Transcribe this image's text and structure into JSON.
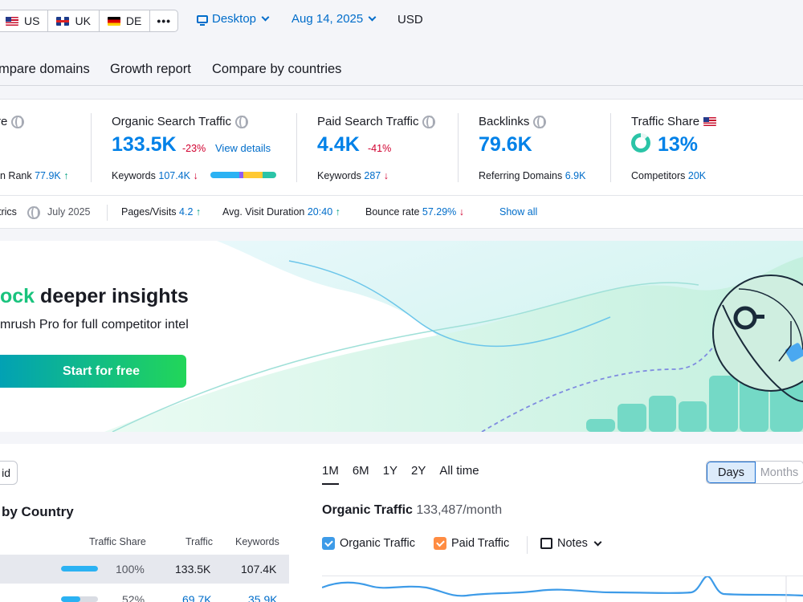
{
  "topbar": {
    "databases": [
      {
        "code": "US",
        "flag": "flag-us"
      },
      {
        "code": "UK",
        "flag": "flag-uk"
      },
      {
        "code": "DE",
        "flag": "flag-de"
      }
    ],
    "more_label": "•••",
    "device": "Desktop",
    "date": "Aug 14, 2025",
    "currency": "USD"
  },
  "nav": {
    "tabs": [
      "mpare domains",
      "Growth report",
      "Compare by countries"
    ]
  },
  "metrics": {
    "authority": {
      "title": "re",
      "sub_label": "n Rank",
      "sub_value": "77.9K",
      "sub_trend": "↑"
    },
    "organic": {
      "title": "Organic Search Traffic",
      "value": "133.5K",
      "delta": "-23%",
      "link": "View details",
      "sub_label": "Keywords",
      "sub_value": "107.4K",
      "sub_trend": "↓"
    },
    "paid": {
      "title": "Paid Search Traffic",
      "value": "4.4K",
      "delta": "-41%",
      "sub_label": "Keywords",
      "sub_value": "287",
      "sub_trend": "↓"
    },
    "backlinks": {
      "title": "Backlinks",
      "value": "79.6K",
      "sub_label": "Referring Domains",
      "sub_value": "6.9K"
    },
    "traffic_share": {
      "title": "Traffic Share",
      "value": "13%",
      "share_fraction": 0.13,
      "sub_label": "Competitors",
      "sub_value": "20K"
    },
    "keyword_bar_colors": [
      "#2bb2f3",
      "#8e5cf5",
      "#ffc933",
      "#2bc4a7"
    ],
    "row2": {
      "engagement_label": "trics",
      "engagement_date": "July 2025",
      "pages_visits_label": "Pages/Visits",
      "pages_visits_value": "4.2",
      "pages_visits_trend": "↑",
      "visit_duration_label": "Avg. Visit Duration",
      "visit_duration_value": "20:40",
      "visit_duration_trend": "↑",
      "bounce_label": "Bounce rate",
      "bounce_value": "57.29%",
      "bounce_trend": "↓",
      "show_all": "Show all"
    }
  },
  "banner": {
    "title_accent": "ock",
    "title_rest": " deeper insights",
    "subtitle": "mrush Pro for full competitor intel",
    "cta": "Start for free"
  },
  "countries": {
    "paid_button": "id",
    "title": "by Country",
    "headers": {
      "share": "Traffic Share",
      "traffic": "Traffic",
      "keywords": "Keywords"
    },
    "rows": [
      {
        "share_pct": "100%",
        "share_fraction": 1.0,
        "traffic": "133.5K",
        "keywords": "107.4K",
        "highlight": true
      },
      {
        "share_pct": "52%",
        "share_fraction": 0.52,
        "traffic": "69.7K",
        "keywords": "35.9K",
        "highlight": false
      }
    ]
  },
  "traffic_chart": {
    "period_tabs": [
      "1M",
      "6M",
      "1Y",
      "2Y",
      "All time"
    ],
    "active_period": "1M",
    "granularity": [
      "Days",
      "Months"
    ],
    "active_granularity": "Days",
    "title": "Organic Traffic",
    "title_value": "133,487/month",
    "legend": {
      "organic": "Organic Traffic",
      "paid": "Paid Traffic",
      "notes": "Notes"
    },
    "colors": {
      "organic": "#3d9be8",
      "paid": "#ff8c42"
    }
  }
}
